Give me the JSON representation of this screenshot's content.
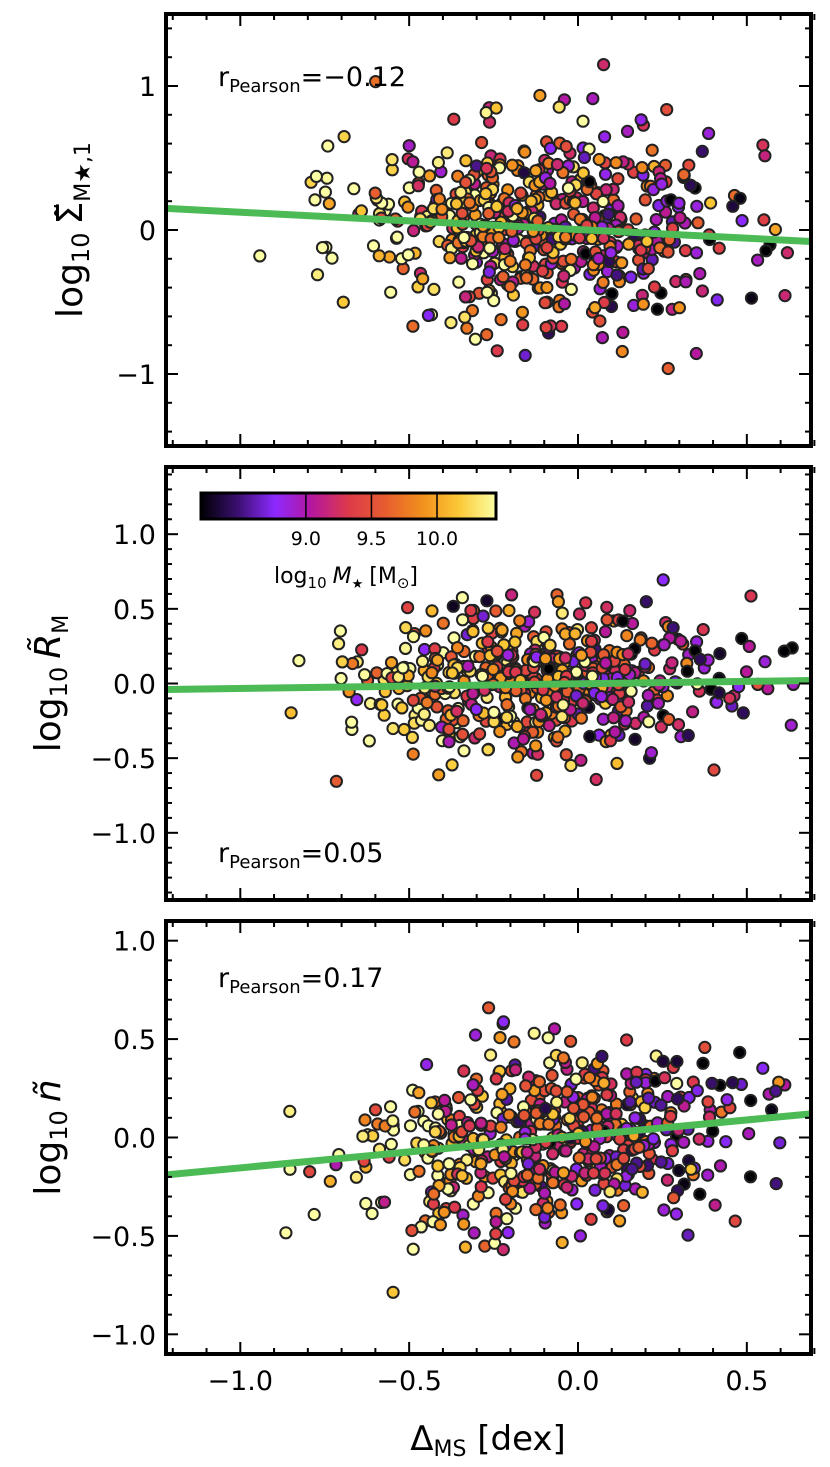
{
  "figure": {
    "xlabel": "ΔMS [dex]",
    "xlabel_main": "Δ",
    "xlabel_sub": "MS",
    "xlabel_unit": " [dex]"
  },
  "colorbar": {
    "label_prefix": "log",
    "label_sub": "10",
    "label_var": "M",
    "label_star": "★",
    "label_unit": "[M",
    "label_unit_sym": "⊙",
    "label_unit_close": "]",
    "range": [
      8.2,
      10.45
    ],
    "ticks": [
      "9.0",
      "9.5",
      "10.0"
    ],
    "colors": [
      "#000004",
      "#3b0f70",
      "#8c29ff",
      "#b5179e",
      "#dd3a4b",
      "#e65d2f",
      "#f2901d",
      "#fbc937",
      "#fcffa4"
    ]
  },
  "chart_data": [
    {
      "type": "scatter",
      "panel": "top",
      "ylabel_prefix": "log",
      "ylabel_sub": "10",
      "ylabel_var": "Σ̃",
      "ylabel_subscript": "M★,1",
      "pearson_label": "r",
      "pearson_sub": "Pearson",
      "pearson_value": "=−0.12",
      "xlim": [
        -1.22,
        0.69
      ],
      "ylim": [
        -1.5,
        1.5
      ],
      "xticks": [
        "−1.0",
        "−0.5",
        "0.0",
        "0.5"
      ],
      "yticks": [
        "−1",
        "0",
        "1"
      ],
      "ytick_values": [
        -1,
        0,
        1
      ],
      "fit": {
        "x": [
          -1.22,
          0.69
        ],
        "y": [
          0.15,
          -0.08
        ]
      },
      "seed": 11,
      "slope": -0.12,
      "spread": 0.33,
      "offset": 0.0
    },
    {
      "type": "scatter",
      "panel": "middle",
      "ylabel_prefix": "log",
      "ylabel_sub": "10",
      "ylabel_var": "R̃",
      "ylabel_subscript": "M",
      "pearson_label": "r",
      "pearson_sub": "Pearson",
      "pearson_value": "=0.05",
      "xlim": [
        -1.22,
        0.69
      ],
      "ylim": [
        -1.45,
        1.45
      ],
      "xticks": [
        "−1.0",
        "−0.5",
        "0.0",
        "0.5"
      ],
      "yticks": [
        "−1.0",
        "−0.5",
        "0.0",
        "0.5",
        "1.0"
      ],
      "ytick_values": [
        -1.0,
        -0.5,
        0.0,
        0.5,
        1.0
      ],
      "fit": {
        "x": [
          -1.22,
          0.69
        ],
        "y": [
          -0.04,
          0.02
        ]
      },
      "seed": 29,
      "slope": 0.05,
      "spread": 0.24,
      "offset": 0.0
    },
    {
      "type": "scatter",
      "panel": "bottom",
      "ylabel_prefix": "log",
      "ylabel_sub": "10",
      "ylabel_var": "ñ",
      "ylabel_subscript": "",
      "pearson_label": "r",
      "pearson_sub": "Pearson",
      "pearson_value": "=0.17",
      "xlim": [
        -1.22,
        0.69
      ],
      "ylim": [
        -1.1,
        1.1
      ],
      "xticks": [
        "−1.0",
        "−0.5",
        "0.0",
        "0.5"
      ],
      "yticks": [
        "−1.0",
        "−0.5",
        "0.0",
        "0.5",
        "1.0"
      ],
      "ytick_values": [
        -1.0,
        -0.5,
        0.0,
        0.5,
        1.0
      ],
      "fit": {
        "x": [
          -1.22,
          0.69
        ],
        "y": [
          -0.19,
          0.12
        ]
      },
      "seed": 47,
      "slope": 0.17,
      "spread": 0.22,
      "offset": 0.0
    }
  ]
}
